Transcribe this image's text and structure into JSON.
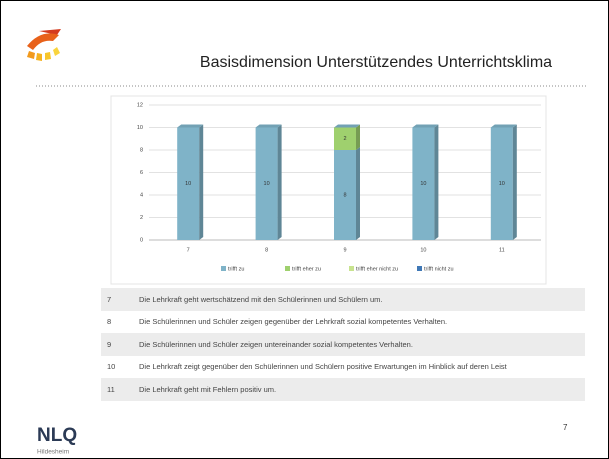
{
  "slide": {
    "title": "Basisdimension Unterstützendes Unterrichtsklima",
    "page_number": "7",
    "logo": "NLQ",
    "logo_subtitle": "Hildesheim"
  },
  "chart_data": {
    "type": "bar",
    "stacked": true,
    "categories": [
      "7",
      "8",
      "9",
      "10",
      "11"
    ],
    "series": [
      {
        "name": "trifft zu",
        "color": "#7fb3c8",
        "values": [
          10,
          10,
          8,
          10,
          10
        ]
      },
      {
        "name": "trifft eher zu",
        "color": "#9fd06e",
        "values": [
          0,
          0,
          2,
          0,
          0
        ]
      },
      {
        "name": "trifft eher nicht zu",
        "color": "#c8e38f",
        "values": [
          0,
          0,
          0,
          0,
          0
        ]
      },
      {
        "name": "trifft nicht zu",
        "color": "#3f78b6",
        "values": [
          0,
          0,
          0,
          0,
          0
        ]
      }
    ],
    "ylim": [
      0,
      12
    ],
    "yticks": [
      0,
      2,
      4,
      6,
      8,
      10,
      12
    ],
    "grid": true,
    "legend": "bottom"
  },
  "table": {
    "rows": [
      [
        "7",
        "Die Lehrkraft geht wertschätzend mit den Schülerinnen und Schülern um."
      ],
      [
        "8",
        "Die Schülerinnen und Schüler zeigen gegenüber der Lehrkraft sozial kompetentes Verhalten."
      ],
      [
        "9",
        "Die Schülerinnen und Schüler zeigen untereinander sozial kompetentes Verhalten."
      ],
      [
        "10",
        "Die Lehrkraft zeigt gegenüber den Schülerinnen und Schülern positive Erwartungen im Hinblick auf deren Leist"
      ],
      [
        "11",
        "Die Lehrkraft geht mit Fehlern positiv um."
      ]
    ]
  }
}
